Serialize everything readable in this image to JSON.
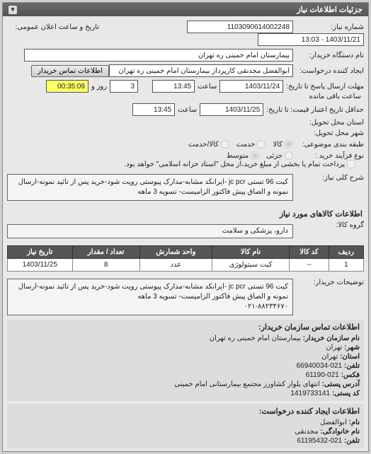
{
  "panel": {
    "title": "جزئیات اطلاعات نیاز",
    "collapse_glyph": "▾"
  },
  "header": {
    "need_no_label": "شماره نیاز:",
    "need_no": "1103090614002248",
    "announce_label": "تاریخ و ساعت اعلان عمومی:",
    "announce": "1403/11/21 - 13:03",
    "buyer_device_label": "نام دستگاه خریدار:",
    "buyer_device": "بیمارستان امام خمینی ره  تهران",
    "requester_label": "ایجاد کننده درخواست:",
    "requester": "ابوالفضل مجدنقی کارپرداز بیمارستان امام خمینی ره  تهران",
    "contact_btn": "اطلاعات تماس خریدار",
    "deadline_label": "مهلت ارسال پاسخ تا تاریخ:",
    "deadline_date": "1403/11/24",
    "time_label": "ساعت",
    "deadline_time": "13:45",
    "days_val": "3",
    "days_label": "روز و",
    "remain_time": "00:35:09",
    "remain_label": "ساعت باقی مانده",
    "price_valid_label": "حداقل تاریخ اعتبار قیمت: تا تاریخ:",
    "price_valid_date": "1403/11/25",
    "price_valid_time": "13:45",
    "province_label": "استان محل تحویل:",
    "city_label": "شهر محل تحویل:",
    "commodity_type_label": "طبقه بندی موضوعی:",
    "radio_goods": "کالا",
    "radio_goods_service": "کالا/خدمت",
    "radio_service": "خدمت",
    "process_label": "نوع فرآیند خرید :",
    "radio_low": "جزئی",
    "radio_med": "متوسط",
    "check_partial": "پرداخت تمام یا بخشی از مبلغ خرید،از محل \"اسناد خزانه اسلامی\" خواهد بود.",
    "subject_label": "شرح کلی نیاز:",
    "subject_text": "کیت 96 تستی jc pcr -ایرانکد مشابه-مدارک پیوستی رویت شود-خرید پس از تائید نمونه-ارسال نمونه و الصاق پیش فاکتور الزامیست- تسویه 3 ماهه"
  },
  "items": {
    "section_title": "اطلاعات کالاهای مورد نیاز",
    "group_label": "گروه کالا:",
    "group_value": "دارو، پزشکی و سلامت",
    "columns": [
      "ردیف",
      "کد کالا",
      "نام کالا",
      "واحد شمارش",
      "تعداد / مقدار",
      "تاریخ نیاز"
    ],
    "rows": [
      {
        "cells": [
          "1",
          "--",
          "کیت سیتولوژی",
          "عدد",
          "8",
          "1403/11/25"
        ]
      }
    ],
    "buyer_desc_label": "توضیحات خریدار:",
    "buyer_desc": "کیت 96 تستی jc pcr -ایرانکد مشابه-مدارک پیوستی رویت شود-خرید پس از تائید نمونه-ارسال نمونه و الصاق پیش فاکتور الزامیست- تسویه 3 ماهه\n۰۲۱-۸۸۲۳۴۶۷۰"
  },
  "contact_org": {
    "heading": "اطلاعات تماس سازمان خریدار:",
    "lines": [
      {
        "k": "نام سازمان خریدار:",
        "v": "بیمارستان امام خمینی ره تهران"
      },
      {
        "k": "شهر:",
        "v": "تهران"
      },
      {
        "k": "استان:",
        "v": "تهران"
      },
      {
        "k": "تلفن:",
        "v": "021-66940034"
      },
      {
        "k": "فکس:",
        "v": "021-61190"
      },
      {
        "k": "آدرس پستی:",
        "v": "انتهای بلوار کشاورز مجتمع بیمارستانی امام خمینی"
      },
      {
        "k": "کد پستی:",
        "v": "1419733141"
      }
    ]
  },
  "contact_req": {
    "heading": "اطلاعات ایجاد کننده درخواست:",
    "lines": [
      {
        "k": "نام:",
        "v": "ابوالفضل"
      },
      {
        "k": "نام خانوادگی:",
        "v": "مجدنقی"
      },
      {
        "k": "تلفن:",
        "v": "021-61195432"
      }
    ]
  }
}
